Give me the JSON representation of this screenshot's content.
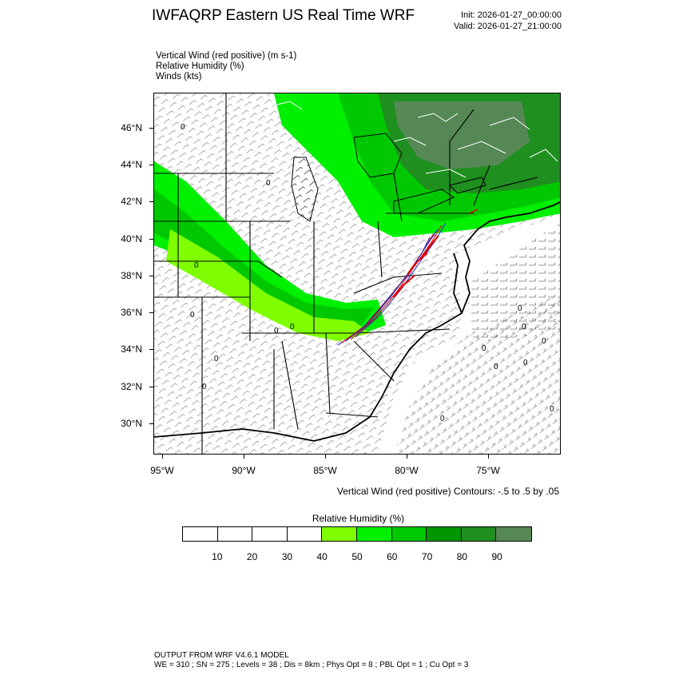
{
  "header": {
    "title": "IWFAQRP Eastern US Real Time WRF",
    "init": "Init: 2026-01-27_00:00:00",
    "valid": "Valid: 2026-01-27_21:00:00"
  },
  "fields": [
    "Vertical Wind (red positive)   (m s-1)",
    "Relative Humidity   (%)",
    "Winds   (kts)"
  ],
  "map": {
    "lat_labels": [
      "46°N",
      "44°N",
      "42°N",
      "40°N",
      "38°N",
      "36°N",
      "34°N",
      "32°N",
      "30°N"
    ],
    "lon_labels": [
      "95°W",
      "90°W",
      "85°W",
      "80°W",
      "75°W"
    ],
    "contour_zero_label": "0",
    "colors": {
      "rh_40": "#80ff00",
      "rh_50": "#00f000",
      "rh_60": "#00c800",
      "rh_70": "#009600",
      "rh_80": "#1f8f1f",
      "rh_90": "#558855",
      "updraft": "#e00000",
      "downdraft": "#2030c0"
    }
  },
  "contour_note": "Vertical Wind (red positive) Contours: -.5 to .5 by .05",
  "colorbar": {
    "title": "Relative Humidity   (%)",
    "labels": [
      "10",
      "20",
      "30",
      "40",
      "50",
      "60",
      "70",
      "80",
      "90"
    ],
    "colors": [
      "#ffffff",
      "#ffffff",
      "#ffffff",
      "#ffffff",
      "#80ff00",
      "#00f000",
      "#00c800",
      "#009600",
      "#1f8f1f",
      "#558855"
    ]
  },
  "footer": {
    "line1": "OUTPUT FROM WRF V4.6.1 MODEL",
    "line2": "WE = 310 ; SN = 275 ; Levels = 38 ; Dis = 8km ; Phys Opt = 8 ; PBL Opt = 1 ; Cu Opt = 3"
  }
}
